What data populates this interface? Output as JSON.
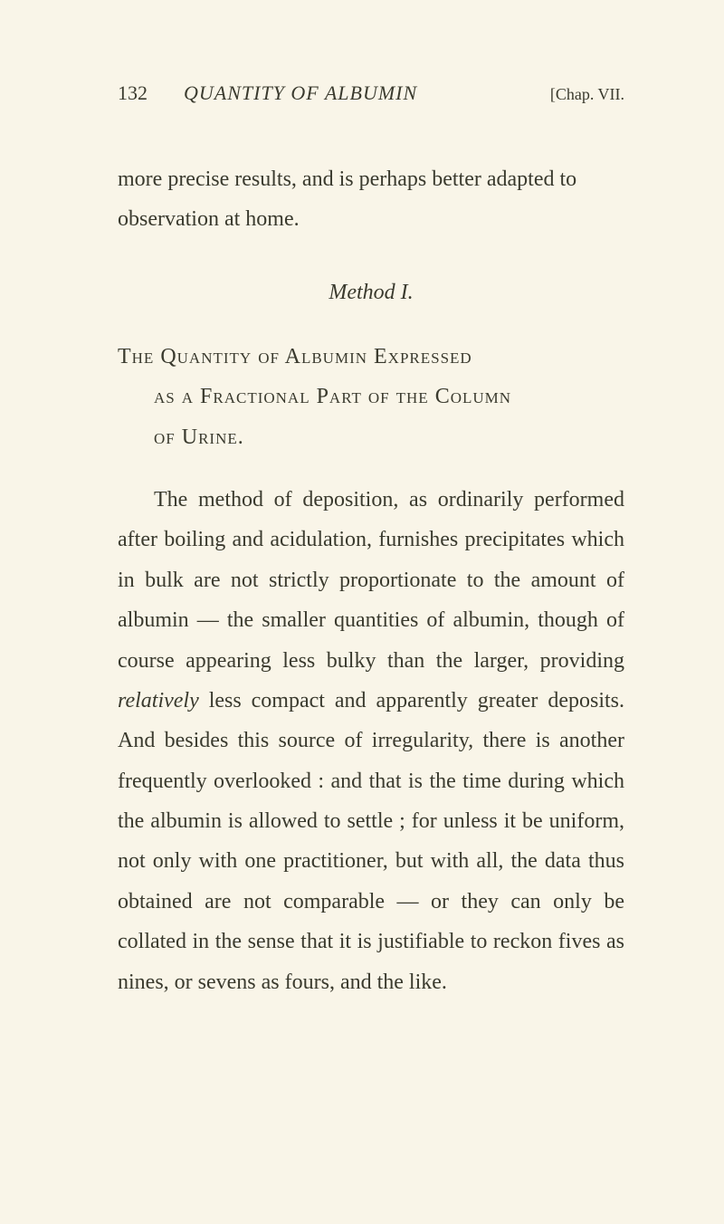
{
  "colors": {
    "background": "#f9f5e8",
    "text": "#3a3a2e"
  },
  "typography": {
    "font_family": "Georgia / Times serif",
    "body_fontsize": 24,
    "line_height": 1.85
  },
  "header": {
    "page_number": "132",
    "running_title": "QUANTITY OF ALBUMIN",
    "chapter_ref": "[Chap. VII."
  },
  "lead_paragraph": "more precise results, and is perhaps better adapted to observation at home.",
  "method_heading": "Method I.",
  "section_title": {
    "line1_prefix": "The ",
    "line1_q": "Quantity",
    "line1_mid": " of ",
    "line1_a": "Albumin",
    "line1_space": " ",
    "line1_e": "Expressed",
    "line2_prefix": "as a ",
    "line2_f": "Fractional",
    "line2_space1": " ",
    "line2_p": "Part",
    "line2_mid": " of the ",
    "line2_c": "Column",
    "line3_prefix": "of ",
    "line3_u": "Urine",
    "line3_end": "."
  },
  "body_paragraph_parts": {
    "p1": "The method of deposition, as ordinarily performed after boiling and acidulation, furnishes precipitates which in bulk are not strictly proportionate to the amount of albumin — the smaller quantities of albumin, though of course appearing less bulky than the larger, providing ",
    "italic1": "relatively",
    "p2": " less compact and apparently greater deposits. And besides this source of irregularity, there is another frequently overlooked : and that is the time during which the albumin is allowed to settle ; for unless it be uniform, not only with one practitioner, but with all, the data thus obtained are not comparable — or they can only be collated in the sense that it is justifiable to reckon fives as nines, or sevens as fours, and the like."
  }
}
